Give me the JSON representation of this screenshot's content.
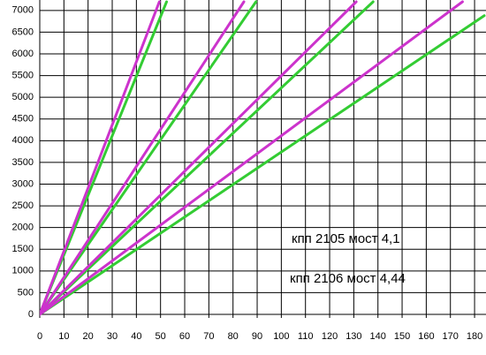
{
  "chart_data": {
    "type": "line",
    "xlim": [
      0,
      184
    ],
    "ylim": [
      0,
      7200
    ],
    "xticks": [
      0,
      10,
      20,
      30,
      40,
      50,
      60,
      70,
      80,
      90,
      100,
      110,
      120,
      130,
      140,
      150,
      160,
      170,
      180
    ],
    "yticks": [
      0,
      500,
      1000,
      1500,
      2000,
      2500,
      3000,
      3500,
      4000,
      4500,
      5000,
      5500,
      6000,
      6500,
      7000
    ],
    "grid": true,
    "series": [
      {
        "name": "кпп 2105 мост 4,1",
        "color": "#33cc33",
        "lines": [
          {
            "x": [
              0,
              52.5
            ],
            "y": [
              0,
              7200
            ]
          },
          {
            "x": [
              0,
              89.5
            ],
            "y": [
              0,
              7200
            ]
          },
          {
            "x": [
              0,
              138
            ],
            "y": [
              0,
              7200
            ]
          },
          {
            "x": [
              0,
              184
            ],
            "y": [
              0,
              6880
            ]
          }
        ]
      },
      {
        "name": "кпп 2106 мост 4,44",
        "color": "#cc33cc",
        "lines": [
          {
            "x": [
              0,
              49.5
            ],
            "y": [
              0,
              7200
            ]
          },
          {
            "x": [
              0,
              84.5
            ],
            "y": [
              0,
              7200
            ]
          },
          {
            "x": [
              0,
              131
            ],
            "y": [
              0,
              7200
            ]
          },
          {
            "x": [
              0,
              175
            ],
            "y": [
              0,
              7200
            ]
          }
        ]
      }
    ]
  }
}
